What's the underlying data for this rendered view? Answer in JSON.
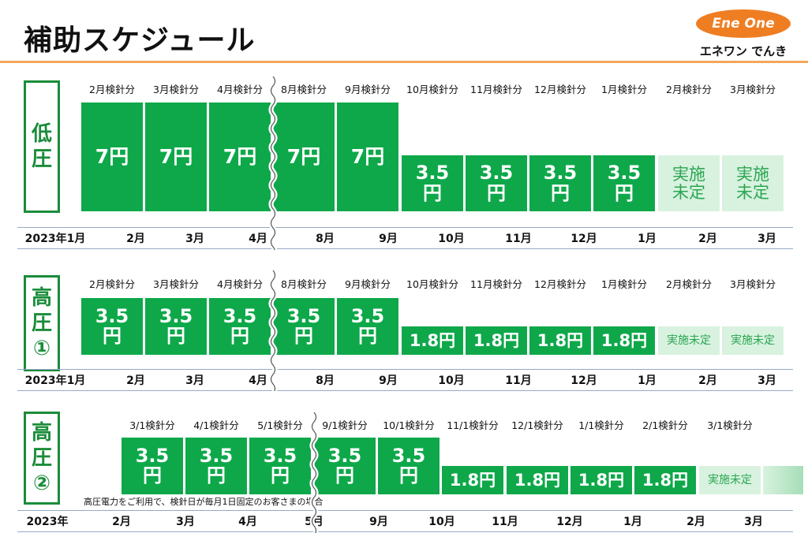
{
  "title": "補助スケジュール",
  "logo": {
    "text": "Ene One",
    "sub": "エネワン でんき",
    "color": "#ef7d22"
  },
  "colors": {
    "green": "#0ea84a",
    "undecided_bg": "#d8f2df",
    "undecided_fg": "#2aa652",
    "frame": "#1a8c3a",
    "orange_line": "#f3a65b"
  },
  "sections": [
    {
      "label_lines": [
        "低",
        "圧"
      ],
      "headers": [
        "2月検針分",
        "3月検針分",
        "4月検針分",
        "8月検針分",
        "9月検針分",
        "10月検針分",
        "11月検針分",
        "12月検針分",
        "1月検針分",
        "2月検針分",
        "3月検針分"
      ],
      "cells": [
        {
          "lines": [
            "7円"
          ],
          "undecided": false
        },
        {
          "lines": [
            "7円"
          ],
          "undecided": false
        },
        {
          "lines": [
            "7円"
          ],
          "undecided": false
        },
        {
          "lines": [
            "7円"
          ],
          "undecided": false
        },
        {
          "lines": [
            "7円"
          ],
          "undecided": false
        },
        {
          "lines": [
            "3.5",
            "円"
          ],
          "undecided": false
        },
        {
          "lines": [
            "3.5",
            "円"
          ],
          "undecided": false
        },
        {
          "lines": [
            "3.5",
            "円"
          ],
          "undecided": false
        },
        {
          "lines": [
            "3.5",
            "円"
          ],
          "undecided": false
        },
        {
          "lines": [
            "実施",
            "未定"
          ],
          "undecided": true
        },
        {
          "lines": [
            "実施",
            "未定"
          ],
          "undecided": true
        }
      ],
      "axis": [
        "2023年1月",
        "2月",
        "3月",
        "4月",
        "8月",
        "9月",
        "10月",
        "11月",
        "12月",
        "1月",
        "2月",
        "3月"
      ],
      "note": ""
    },
    {
      "label_lines": [
        "高",
        "圧",
        "①"
      ],
      "headers": [
        "2月検針分",
        "3月検針分",
        "4月検針分",
        "8月検針分",
        "9月検針分",
        "10月検針分",
        "11月検針分",
        "12月検針分",
        "1月検針分",
        "2月検針分",
        "3月検針分"
      ],
      "cells": [
        {
          "lines": [
            "3.5",
            "円"
          ],
          "undecided": false
        },
        {
          "lines": [
            "3.5",
            "円"
          ],
          "undecided": false
        },
        {
          "lines": [
            "3.5",
            "円"
          ],
          "undecided": false
        },
        {
          "lines": [
            "3.5",
            "円"
          ],
          "undecided": false
        },
        {
          "lines": [
            "3.5",
            "円"
          ],
          "undecided": false
        },
        {
          "lines": [
            "1.8円"
          ],
          "undecided": false
        },
        {
          "lines": [
            "1.8円"
          ],
          "undecided": false
        },
        {
          "lines": [
            "1.8円"
          ],
          "undecided": false
        },
        {
          "lines": [
            "1.8円"
          ],
          "undecided": false
        },
        {
          "lines": [
            "実施未定"
          ],
          "undecided": true
        },
        {
          "lines": [
            "実施未定"
          ],
          "undecided": true
        }
      ],
      "axis": [
        "2023年1月",
        "2月",
        "3月",
        "4月",
        "8月",
        "9月",
        "10月",
        "11月",
        "12月",
        "1月",
        "2月",
        "3月"
      ],
      "note": ""
    },
    {
      "label_lines": [
        "高",
        "圧",
        "②"
      ],
      "headers": [
        "3/1検針分",
        "4/1検針分",
        "5/1検針分",
        "9/1検針分",
        "10/1検針分",
        "11/1検針分",
        "12/1検針分",
        "1/1検針分",
        "2/1検針分",
        "3/1検針分"
      ],
      "cells": [
        {
          "lines": [
            "3.5",
            "円"
          ],
          "undecided": false
        },
        {
          "lines": [
            "3.5",
            "円"
          ],
          "undecided": false
        },
        {
          "lines": [
            "3.5",
            "円"
          ],
          "undecided": false
        },
        {
          "lines": [
            "3.5",
            "円"
          ],
          "undecided": false
        },
        {
          "lines": [
            "3.5",
            "円"
          ],
          "undecided": false
        },
        {
          "lines": [
            "1.8円"
          ],
          "undecided": false
        },
        {
          "lines": [
            "1.8円"
          ],
          "undecided": false
        },
        {
          "lines": [
            "1.8円"
          ],
          "undecided": false
        },
        {
          "lines": [
            "1.8円"
          ],
          "undecided": false
        },
        {
          "lines": [
            "実施未定"
          ],
          "undecided": true
        },
        {
          "lines": [],
          "undecided": true
        }
      ],
      "axis": [
        "2023年",
        "2月",
        "3月",
        "4月",
        "5月",
        "9月",
        "10月",
        "11月",
        "12月",
        "1月",
        "2月",
        "3月"
      ],
      "note": "高圧電力をご利用で、検針日が毎月1日固定のお客さまの場合"
    }
  ]
}
